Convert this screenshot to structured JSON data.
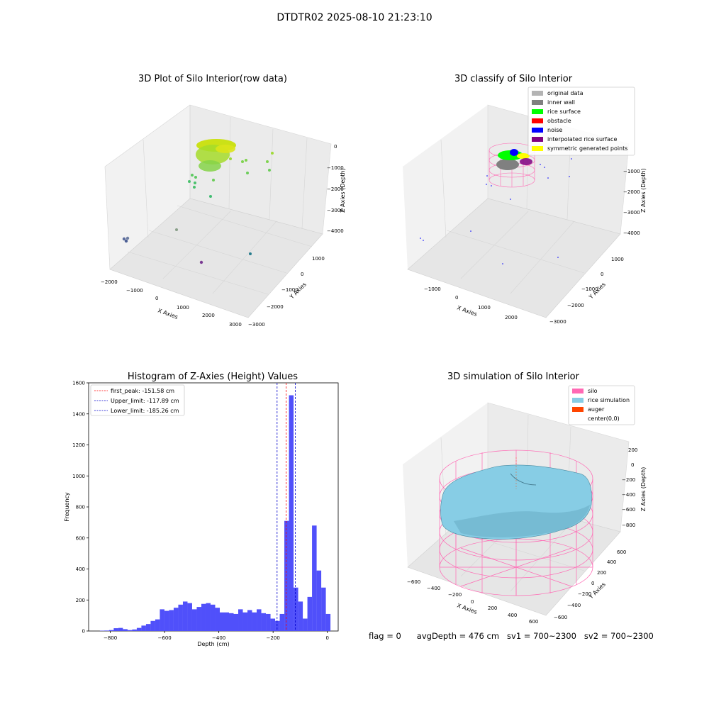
{
  "figure_title": "DTDTR02 2025-08-10 21:23:10",
  "footer": {
    "flag": "flag = 0",
    "avg_depth": "avgDepth = 476 cm",
    "sv1": "sv1 = 700~2300",
    "sv2": "sv2 = 700~2300"
  },
  "colors": {
    "histogram_bar": "#5050fa",
    "first_peak_line": "#ff0000",
    "limit_lines": "#0000cc",
    "silo": "#ff69b4",
    "rice_simulation": "#87cde5",
    "auger": "#ff4500",
    "original_data": "#b4b4b4",
    "inner_wall": "#808080",
    "rice_surface": "#00ff00",
    "obstacle": "#ff0000",
    "noise": "#0000ff",
    "interpolated_rice_surface": "#800080",
    "symmetric_generated_points": "#ffff00"
  },
  "chart_data": [
    {
      "type": "scatter",
      "title": "3D Plot of Silo Interior(row data)",
      "xlabel": "X Axies",
      "ylabel": "Y Axies",
      "zlabel": "Z Axies (Depth)",
      "x_ticks": [
        "−2000",
        "−1000",
        "0",
        "1000",
        "2000",
        "3000"
      ],
      "y_ticks": [
        "−3000",
        "−2000",
        "−1000",
        "0",
        "1000"
      ],
      "z_ticks": [
        "−4000",
        "−3000",
        "−2000",
        "−1000",
        "0"
      ]
    },
    {
      "type": "scatter",
      "title": "3D classify of Silo Interior",
      "xlabel": "X Axies",
      "ylabel": "Y Axies",
      "zlabel": "Z Axies (Depth)",
      "x_ticks": [
        "−1000",
        "0",
        "1000",
        "2000"
      ],
      "y_ticks": [
        "−3000",
        "−2000",
        "−1000",
        "0",
        "1000"
      ],
      "z_ticks": [
        "−4000",
        "−3000",
        "−2000",
        "−1000"
      ],
      "legend": [
        "original data",
        "inner wall",
        "rice surface",
        "obstacle",
        "noise",
        "interpolated rice surface",
        "symmetric generated points"
      ],
      "legend_placement": "top-right"
    },
    {
      "type": "bar",
      "title": "Histogram of Z-Axies (Height) Values",
      "xlabel": "Depth (cm)",
      "ylabel": "Frequency",
      "xlim": [
        -880,
        40
      ],
      "ylim": [
        0,
        1600
      ],
      "x_ticks": [
        "−800",
        "−600",
        "−400",
        "−200",
        "0"
      ],
      "y_ticks": [
        "0",
        "200",
        "400",
        "600",
        "800",
        "1000",
        "1200",
        "1400",
        "1600"
      ],
      "bin_width": 17,
      "bin_centers": [
        -830,
        -813,
        -796,
        -779,
        -762,
        -745,
        -728,
        -711,
        -694,
        -677,
        -660,
        -643,
        -626,
        -609,
        -592,
        -575,
        -558,
        -541,
        -524,
        -507,
        -490,
        -473,
        -456,
        -439,
        -422,
        -405,
        -388,
        -371,
        -354,
        -337,
        -320,
        -303,
        -286,
        -269,
        -252,
        -235,
        -218,
        -201,
        -184,
        -167,
        -150,
        -133,
        -116,
        -99,
        -82,
        -65,
        -48,
        -31,
        -14,
        3
      ],
      "values": [
        2,
        3,
        6,
        18,
        20,
        12,
        6,
        10,
        20,
        35,
        45,
        65,
        75,
        140,
        130,
        135,
        150,
        170,
        190,
        180,
        140,
        155,
        175,
        180,
        170,
        150,
        120,
        120,
        115,
        110,
        140,
        120,
        135,
        120,
        140,
        115,
        110,
        80,
        65,
        110,
        710,
        1520,
        280,
        190,
        80,
        220,
        680,
        390,
        280,
        110
      ],
      "vlines": [
        {
          "label": "first_peak: -151.58 cm",
          "x": -151.58,
          "style": "dashed",
          "color": "red"
        },
        {
          "label": "Upper_limit: -117.89 cm",
          "x": -117.89,
          "style": "dashed",
          "color": "blue"
        },
        {
          "label": "Lower_limit: -185.26 cm",
          "x": -185.26,
          "style": "dashed",
          "color": "blue"
        }
      ],
      "legend_placement": "top-left"
    },
    {
      "type": "surface",
      "title": "3D simulation of Silo Interior",
      "xlabel": "X Axies",
      "ylabel": "Y Axies",
      "zlabel": "Z Axies (Depth)",
      "x_ticks": [
        "−600",
        "−400",
        "−200",
        "0",
        "200",
        "400",
        "600"
      ],
      "y_ticks": [
        "−600",
        "−400",
        "−200",
        "0",
        "200",
        "400",
        "600"
      ],
      "z_ticks": [
        "−800",
        "−600",
        "−400",
        "−200",
        "0",
        "200"
      ],
      "legend": [
        "silo",
        "rice simulation",
        "auger",
        "center(0,0)"
      ],
      "legend_placement": "top-right"
    }
  ]
}
